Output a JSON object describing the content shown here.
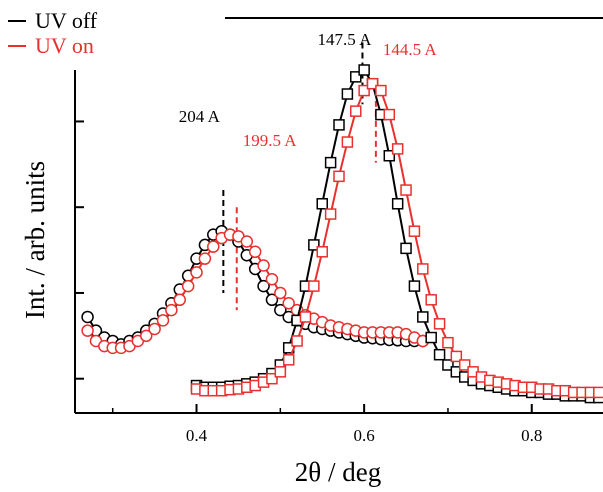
{
  "chart_data": {
    "type": "line",
    "xlabel": "2θ / deg",
    "ylabel": "Int. / arb. units",
    "xlim": [
      0.255,
      0.885
    ],
    "ylim": [
      0,
      100
    ],
    "xticks": [
      0.4,
      0.6,
      0.8
    ],
    "xtick_labels": [
      "0.4",
      "0.6",
      "0.8"
    ],
    "yticks": [
      10,
      35,
      60,
      85
    ],
    "yticks_labelled": false,
    "grid": false,
    "legend_position": "top-left",
    "colors": {
      "uv_off": "#000000",
      "uv_on": "#e8312f"
    },
    "legend": [
      {
        "label": "UV off",
        "color": "#000000"
      },
      {
        "label": "UV on",
        "color": "#e8312f"
      }
    ],
    "series": [
      {
        "name": "UV off",
        "color": "#000000",
        "marker": "circle",
        "x": [
          0.27,
          0.28,
          0.29,
          0.3,
          0.31,
          0.32,
          0.33,
          0.34,
          0.35,
          0.36,
          0.37,
          0.38,
          0.39,
          0.4,
          0.41,
          0.42,
          0.43,
          0.44,
          0.45,
          0.46,
          0.47,
          0.48,
          0.49,
          0.5,
          0.51,
          0.52,
          0.53,
          0.54,
          0.55,
          0.56,
          0.57,
          0.58,
          0.59,
          0.6,
          0.61,
          0.62,
          0.63,
          0.64,
          0.65,
          0.66,
          0.67
        ],
        "y": [
          28,
          24,
          22,
          21,
          20,
          21,
          22,
          24,
          26,
          29,
          32,
          36,
          40,
          45,
          49,
          52,
          53,
          52,
          50,
          46,
          42,
          37,
          33,
          30,
          28,
          27,
          26,
          25,
          24.5,
          24,
          23.5,
          23,
          22.5,
          22,
          21.8,
          21.5,
          21.3,
          21.2,
          21,
          21,
          21
        ]
      },
      {
        "name": "UV on",
        "color": "#e8312f",
        "marker": "circle",
        "x": [
          0.27,
          0.28,
          0.29,
          0.3,
          0.31,
          0.32,
          0.33,
          0.34,
          0.35,
          0.36,
          0.37,
          0.38,
          0.39,
          0.4,
          0.41,
          0.42,
          0.43,
          0.44,
          0.45,
          0.46,
          0.47,
          0.48,
          0.49,
          0.5,
          0.51,
          0.52,
          0.53,
          0.54,
          0.55,
          0.56,
          0.57,
          0.58,
          0.59,
          0.6,
          0.61,
          0.62,
          0.63,
          0.64,
          0.65,
          0.66,
          0.67
        ],
        "y": [
          24,
          21,
          19.5,
          19,
          19,
          19.5,
          21,
          22.5,
          24.5,
          27,
          30,
          33,
          37,
          41,
          45,
          48.5,
          51,
          52,
          51.5,
          50,
          47,
          43,
          39,
          35,
          32,
          30,
          28.5,
          27.5,
          26.5,
          25.5,
          25,
          24.5,
          24,
          23.5,
          23.5,
          23.5,
          23.5,
          23.5,
          23,
          22,
          21
        ]
      },
      {
        "name": "UV off",
        "color": "#000000",
        "marker": "square",
        "x": [
          0.4,
          0.41,
          0.42,
          0.43,
          0.44,
          0.45,
          0.46,
          0.47,
          0.48,
          0.49,
          0.5,
          0.51,
          0.52,
          0.53,
          0.54,
          0.55,
          0.56,
          0.57,
          0.58,
          0.59,
          0.6,
          0.61,
          0.62,
          0.63,
          0.64,
          0.65,
          0.66,
          0.67,
          0.68,
          0.69,
          0.7,
          0.71,
          0.72,
          0.73,
          0.74,
          0.75,
          0.76,
          0.77,
          0.78,
          0.79,
          0.8,
          0.81,
          0.82,
          0.83,
          0.84,
          0.85,
          0.86,
          0.87,
          0.88
        ],
        "y": [
          8,
          7.5,
          7.5,
          7.5,
          7.8,
          8,
          8.5,
          9,
          10,
          11.5,
          14,
          19,
          27,
          37,
          49,
          61,
          73,
          84,
          93,
          98,
          100,
          96,
          87,
          75,
          61,
          48,
          37,
          28,
          22,
          17,
          14,
          12,
          10.5,
          9.5,
          8.5,
          8,
          7.5,
          7,
          6.5,
          6.5,
          6,
          6,
          5.5,
          5.5,
          5,
          5,
          5,
          4.5,
          4.5
        ]
      },
      {
        "name": "UV on",
        "color": "#e8312f",
        "marker": "square",
        "x": [
          0.4,
          0.41,
          0.42,
          0.43,
          0.44,
          0.45,
          0.46,
          0.47,
          0.48,
          0.49,
          0.5,
          0.51,
          0.52,
          0.53,
          0.54,
          0.55,
          0.56,
          0.57,
          0.58,
          0.59,
          0.6,
          0.61,
          0.62,
          0.63,
          0.64,
          0.65,
          0.66,
          0.67,
          0.68,
          0.69,
          0.7,
          0.71,
          0.72,
          0.73,
          0.74,
          0.75,
          0.76,
          0.77,
          0.78,
          0.79,
          0.8,
          0.81,
          0.82,
          0.83,
          0.84,
          0.85,
          0.86,
          0.87,
          0.88
        ],
        "y": [
          7,
          6.5,
          6.5,
          6.5,
          6.8,
          7,
          7.5,
          8,
          9,
          10,
          12,
          15.5,
          21,
          28,
          37,
          47,
          58,
          69,
          79,
          88,
          94,
          96,
          94,
          87,
          77,
          65,
          53,
          42,
          33,
          26,
          20.5,
          16.5,
          14,
          12,
          10.5,
          9.5,
          9,
          8.5,
          8,
          7.5,
          7.5,
          7,
          7,
          6.5,
          6.5,
          6,
          6,
          6,
          6
        ]
      }
    ],
    "annotations": [
      {
        "text": "204 A",
        "x": 0.432,
        "color": "#000000",
        "marker_y": [
          35,
          65
        ]
      },
      {
        "text": "199.5 A",
        "x": 0.448,
        "color": "#e8312f",
        "marker_y": [
          30,
          60
        ]
      },
      {
        "text": "147.5 A",
        "x": 0.598,
        "color": "#000000",
        "marker_y": [
          90,
          108
        ]
      },
      {
        "text": "144.5 A",
        "x": 0.614,
        "color": "#e8312f",
        "marker_y": [
          73,
          91
        ]
      }
    ]
  }
}
